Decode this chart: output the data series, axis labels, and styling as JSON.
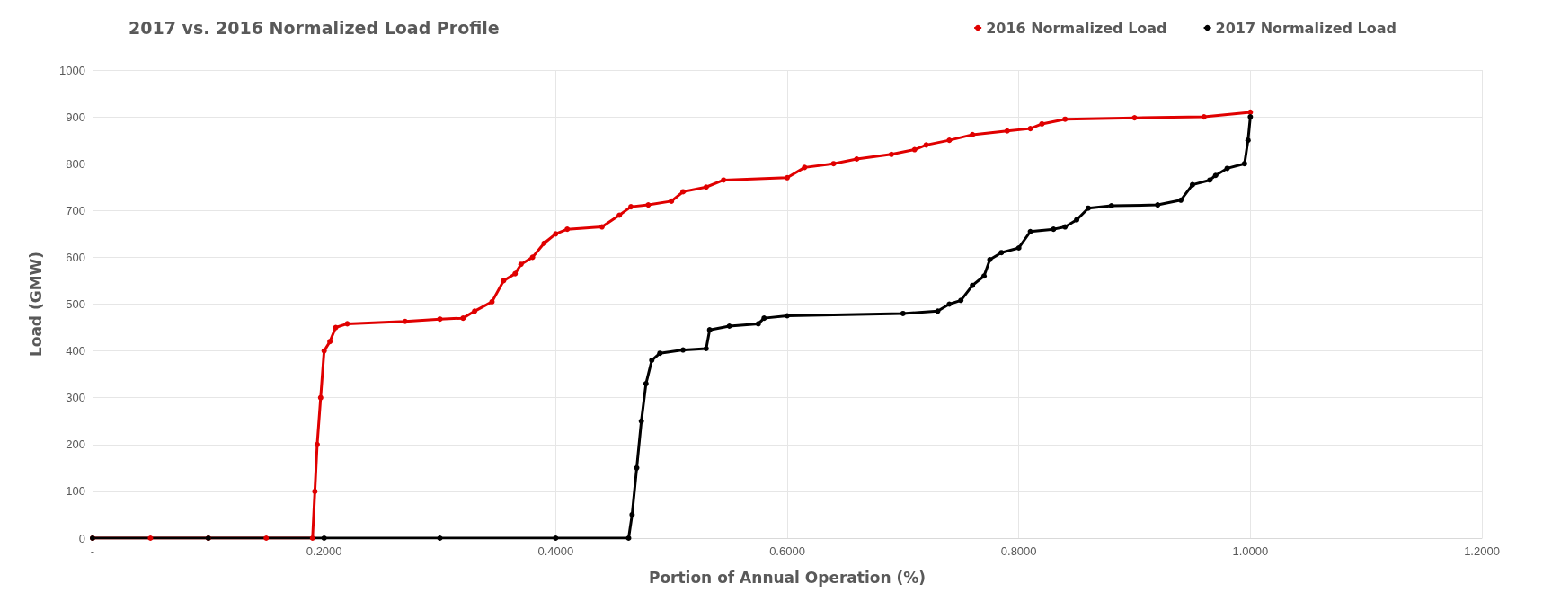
{
  "chart_data": {
    "type": "line",
    "title": "2017 vs. 2016 Normalized Load Profile",
    "xlabel": "Portion of Annual Operation (%)",
    "ylabel": "Load (GMW)",
    "marker": "circle",
    "grid": true,
    "legend": "top right",
    "xlim": [
      0,
      1.2
    ],
    "xticks": [
      {
        "value": 0,
        "label": "-"
      },
      {
        "value": 0.2,
        "label": "0.2000"
      },
      {
        "value": 0.4,
        "label": "0.4000"
      },
      {
        "value": 0.6,
        "label": "0.6000"
      },
      {
        "value": 0.8,
        "label": "0.8000"
      },
      {
        "value": 1,
        "label": "1.0000"
      },
      {
        "value": 1.2,
        "label": "1.2000"
      }
    ],
    "ylim": [
      0,
      1000
    ],
    "yticks": [
      0,
      100,
      200,
      300,
      400,
      500,
      600,
      700,
      800,
      900,
      1000
    ],
    "series": [
      {
        "name": "2016 Normalized Load",
        "color": "#e00000",
        "x": [
          0,
          0.05,
          0.1,
          0.15,
          0.19,
          0.192,
          0.194,
          0.197,
          0.2,
          0.205,
          0.21,
          0.22,
          0.27,
          0.3,
          0.32,
          0.33,
          0.345,
          0.355,
          0.365,
          0.37,
          0.38,
          0.39,
          0.4,
          0.41,
          0.44,
          0.455,
          0.465,
          0.48,
          0.5,
          0.51,
          0.53,
          0.545,
          0.6,
          0.615,
          0.64,
          0.66,
          0.69,
          0.71,
          0.72,
          0.74,
          0.76,
          0.79,
          0.81,
          0.82,
          0.84,
          0.9,
          0.96,
          1.0
        ],
        "values": [
          0,
          0,
          0,
          0,
          0,
          100,
          200,
          300,
          400,
          420,
          450,
          458,
          463,
          468,
          470,
          485,
          505,
          550,
          565,
          585,
          600,
          630,
          650,
          660,
          665,
          690,
          708,
          712,
          720,
          740,
          750,
          765,
          770,
          792,
          800,
          810,
          820,
          830,
          840,
          850,
          862,
          870,
          875,
          885,
          895,
          898,
          900,
          910
        ]
      },
      {
        "name": "2017 Normalized Load",
        "color": "#000000",
        "x": [
          0,
          0.1,
          0.2,
          0.3,
          0.4,
          0.463,
          0.466,
          0.47,
          0.474,
          0.478,
          0.483,
          0.49,
          0.51,
          0.53,
          0.533,
          0.55,
          0.575,
          0.58,
          0.6,
          0.7,
          0.73,
          0.74,
          0.75,
          0.76,
          0.77,
          0.775,
          0.785,
          0.8,
          0.81,
          0.83,
          0.84,
          0.85,
          0.86,
          0.88,
          0.92,
          0.94,
          0.95,
          0.965,
          0.97,
          0.98,
          0.995,
          0.998,
          1.0
        ],
        "values": [
          0,
          0,
          0,
          0,
          0,
          0,
          50,
          150,
          250,
          330,
          380,
          395,
          402,
          405,
          445,
          453,
          458,
          470,
          475,
          480,
          485,
          500,
          508,
          540,
          560,
          595,
          610,
          620,
          655,
          660,
          665,
          680,
          705,
          710,
          712,
          722,
          755,
          765,
          775,
          790,
          800,
          850,
          900
        ]
      }
    ]
  }
}
